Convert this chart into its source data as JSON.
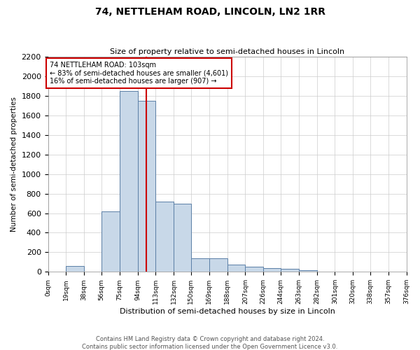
{
  "title": "74, NETTLEHAM ROAD, LINCOLN, LN2 1RR",
  "subtitle": "Size of property relative to semi-detached houses in Lincoln",
  "xlabel": "Distribution of semi-detached houses by size in Lincoln",
  "ylabel": "Number of semi-detached properties",
  "annotation_line1": "74 NETTLEHAM ROAD: 103sqm",
  "annotation_line2": "← 83% of semi-detached houses are smaller (4,601)",
  "annotation_line3": "16% of semi-detached houses are larger (907) →",
  "footer1": "Contains HM Land Registry data © Crown copyright and database right 2024.",
  "footer2": "Contains public sector information licensed under the Open Government Licence v3.0.",
  "bin_edges": [
    0,
    19,
    38,
    56,
    75,
    94,
    113,
    132,
    150,
    169,
    188,
    207,
    226,
    244,
    263,
    282,
    301,
    320,
    338,
    357,
    376
  ],
  "bar_heights": [
    3,
    60,
    0,
    620,
    1850,
    1750,
    720,
    700,
    140,
    140,
    75,
    55,
    40,
    30,
    15,
    5,
    2,
    1,
    0,
    0
  ],
  "bar_color": "#c8d8e8",
  "bar_edge_color": "#5b7fa6",
  "vline_x": 103,
  "vline_color": "#cc0000",
  "annotation_box_color": "#cc0000",
  "ylim": [
    0,
    2200
  ],
  "yticks": [
    0,
    200,
    400,
    600,
    800,
    1000,
    1200,
    1400,
    1600,
    1800,
    2000,
    2200
  ],
  "background_color": "#ffffff",
  "grid_color": "#cccccc"
}
